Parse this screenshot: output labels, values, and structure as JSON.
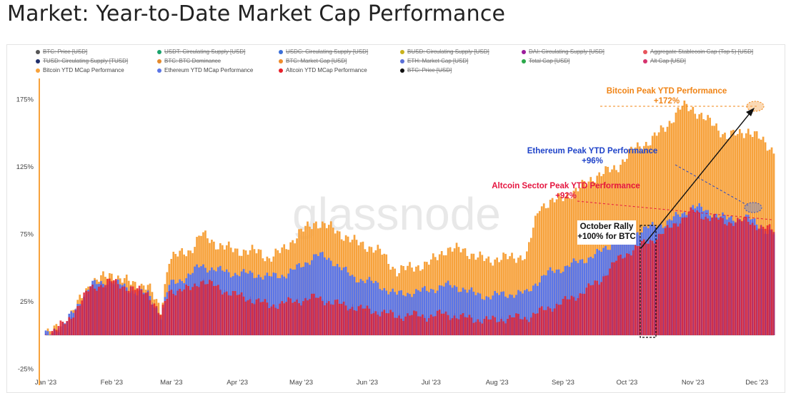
{
  "title": "Market: Year-to-Date Market Cap Performance",
  "watermark": "glassnode",
  "legend": [
    {
      "label": "BTC: Price [USD]",
      "color": "#555555",
      "off": true
    },
    {
      "label": "USDT: Circulating Supply [USD]",
      "color": "#1aa36c",
      "off": true
    },
    {
      "label": "USDC: Circulating Supply [USD]",
      "color": "#3b6fd8",
      "off": true
    },
    {
      "label": "BUSD: Circulating Supply [USD]",
      "color": "#c9b21b",
      "off": true
    },
    {
      "label": "DAI: Circulating Supply [USD]",
      "color": "#9b1c9b",
      "off": true
    },
    {
      "label": "Aggregate Stablecoin Cap (Top 5) [USD]",
      "color": "#e8545c",
      "off": true
    },
    {
      "label": "TUSD: Circulating Supply [TUSD]",
      "color": "#1f2e6b",
      "off": true
    },
    {
      "label": "BTC: BTC Dominance",
      "color": "#e58a2c",
      "off": true
    },
    {
      "label": "BTC: Market Cap [USD]",
      "color": "#f08c2b",
      "off": true
    },
    {
      "label": "ETH: Market Cap [USD]",
      "color": "#5a6fd8",
      "off": true
    },
    {
      "label": "Total Cap [USD]",
      "color": "#2aa84a",
      "off": true
    },
    {
      "label": "Alt Cap [USD]",
      "color": "#d6326e",
      "off": true
    },
    {
      "label": "Bitcoin YTD MCap Performance",
      "color": "#f7a23c",
      "off": false
    },
    {
      "label": "Ethereum YTD MCap Performance",
      "color": "#5b75e6",
      "off": false
    },
    {
      "label": "Altcoin YTD MCap Performance",
      "color": "#e8202a",
      "off": false
    },
    {
      "label": "BTC: Price [USD]",
      "color": "#111111",
      "off": true
    }
  ],
  "chart_data": {
    "type": "area",
    "x": [
      "Jan '23",
      "Feb '23",
      "Mar '23",
      "Apr '23",
      "May '23",
      "Jun '23",
      "Jul '23",
      "Aug '23",
      "Sep '23",
      "Oct '23",
      "Nov '23",
      "Dec '23"
    ],
    "x_ticks": [
      "Jan '23",
      "Feb '23",
      "Mar '23",
      "Apr '23",
      "May '23",
      "Jun '23",
      "Jul '23",
      "Aug '23",
      "Sep '23",
      "Oct '23",
      "Nov '23",
      "Dec '23"
    ],
    "y_ticks": [
      "175%",
      "125%",
      "75%",
      "25%",
      "-25%"
    ],
    "ylim": [
      -25,
      190
    ],
    "series": [
      {
        "name": "Bitcoin YTD MCap Performance",
        "color": "#f7a23c",
        "values": [
          [
            0,
            0
          ],
          [
            10,
            10
          ],
          [
            21,
            39
          ],
          [
            31,
            45
          ],
          [
            41,
            38
          ],
          [
            48,
            37
          ],
          [
            54,
            18
          ],
          [
            58,
            57
          ],
          [
            68,
            63
          ],
          [
            73,
            75
          ],
          [
            81,
            67
          ],
          [
            89,
            63
          ],
          [
            100,
            62
          ],
          [
            105,
            57
          ],
          [
            112,
            64
          ],
          [
            120,
            77
          ],
          [
            127,
            84
          ],
          [
            135,
            79
          ],
          [
            144,
            70
          ],
          [
            150,
            67
          ],
          [
            158,
            61
          ],
          [
            165,
            47
          ],
          [
            172,
            51
          ],
          [
            179,
            52
          ],
          [
            187,
            63
          ],
          [
            196,
            64
          ],
          [
            202,
            58
          ],
          [
            208,
            56
          ],
          [
            214,
            57
          ],
          [
            220,
            58
          ],
          [
            226,
            59
          ],
          [
            228,
            73
          ],
          [
            232,
            96
          ],
          [
            240,
            100
          ],
          [
            250,
            108
          ],
          [
            258,
            118
          ],
          [
            268,
            124
          ],
          [
            276,
            138
          ],
          [
            284,
            144
          ],
          [
            292,
            156
          ],
          [
            299,
            170
          ],
          [
            304,
            168
          ],
          [
            310,
            160
          ],
          [
            315,
            155
          ],
          [
            320,
            147
          ],
          [
            330,
            152
          ],
          [
            336,
            145
          ],
          [
            342,
            137
          ]
        ]
      },
      {
        "name": "Ethereum YTD MCap Performance",
        "color": "#5b75e6",
        "values": [
          [
            0,
            0
          ],
          [
            10,
            10
          ],
          [
            21,
            37
          ],
          [
            31,
            40
          ],
          [
            41,
            33
          ],
          [
            48,
            30
          ],
          [
            54,
            15
          ],
          [
            58,
            37
          ],
          [
            68,
            45
          ],
          [
            73,
            52
          ],
          [
            81,
            48
          ],
          [
            89,
            46
          ],
          [
            100,
            45
          ],
          [
            105,
            43
          ],
          [
            112,
            45
          ],
          [
            120,
            51
          ],
          [
            127,
            60
          ],
          [
            135,
            55
          ],
          [
            144,
            43
          ],
          [
            150,
            41
          ],
          [
            158,
            36
          ],
          [
            165,
            30
          ],
          [
            172,
            32
          ],
          [
            179,
            33
          ],
          [
            187,
            37
          ],
          [
            196,
            35
          ],
          [
            202,
            30
          ],
          [
            208,
            29
          ],
          [
            214,
            30
          ],
          [
            220,
            31
          ],
          [
            226,
            31
          ],
          [
            230,
            39
          ],
          [
            236,
            46
          ],
          [
            248,
            53
          ],
          [
            260,
            61
          ],
          [
            268,
            70
          ],
          [
            276,
            76
          ],
          [
            284,
            80
          ],
          [
            292,
            84
          ],
          [
            300,
            91
          ],
          [
            304,
            96
          ],
          [
            310,
            92
          ],
          [
            315,
            90
          ],
          [
            320,
            86
          ],
          [
            330,
            87
          ],
          [
            336,
            80
          ],
          [
            342,
            75
          ]
        ]
      },
      {
        "name": "Altcoin YTD MCap Performance",
        "color": "#e8202a",
        "values": [
          [
            0,
            0
          ],
          [
            10,
            10
          ],
          [
            21,
            35
          ],
          [
            31,
            40
          ],
          [
            41,
            34
          ],
          [
            48,
            32
          ],
          [
            54,
            14
          ],
          [
            58,
            33
          ],
          [
            68,
            34
          ],
          [
            73,
            41
          ],
          [
            81,
            35
          ],
          [
            89,
            30
          ],
          [
            100,
            25
          ],
          [
            105,
            22
          ],
          [
            112,
            24
          ],
          [
            120,
            26
          ],
          [
            127,
            28
          ],
          [
            135,
            24
          ],
          [
            144,
            21
          ],
          [
            150,
            19
          ],
          [
            158,
            17
          ],
          [
            165,
            14
          ],
          [
            172,
            15
          ],
          [
            179,
            14
          ],
          [
            187,
            16
          ],
          [
            196,
            13
          ],
          [
            202,
            12
          ],
          [
            208,
            11
          ],
          [
            214,
            12
          ],
          [
            220,
            13
          ],
          [
            226,
            13
          ],
          [
            230,
            16
          ],
          [
            236,
            20
          ],
          [
            248,
            28
          ],
          [
            260,
            40
          ],
          [
            268,
            55
          ],
          [
            276,
            64
          ],
          [
            284,
            70
          ],
          [
            292,
            78
          ],
          [
            300,
            88
          ],
          [
            304,
            92
          ],
          [
            310,
            88
          ],
          [
            315,
            86
          ],
          [
            320,
            84
          ],
          [
            330,
            85
          ],
          [
            336,
            80
          ],
          [
            342,
            78
          ]
        ]
      }
    ],
    "annotations": [
      {
        "title": "Bitcoin Peak YTD Performance",
        "value": "+172%",
        "color": "#f08416"
      },
      {
        "title": "Ethereum Peak YTD Performance",
        "value": "+96%",
        "color": "#1f43c9"
      },
      {
        "title": "Altcoin Sector Peak YTD Performance",
        "value": "+92%",
        "color": "#e51640"
      },
      {
        "title": "October Rally",
        "value": "+100% for BTC",
        "color": "#111111"
      }
    ]
  }
}
